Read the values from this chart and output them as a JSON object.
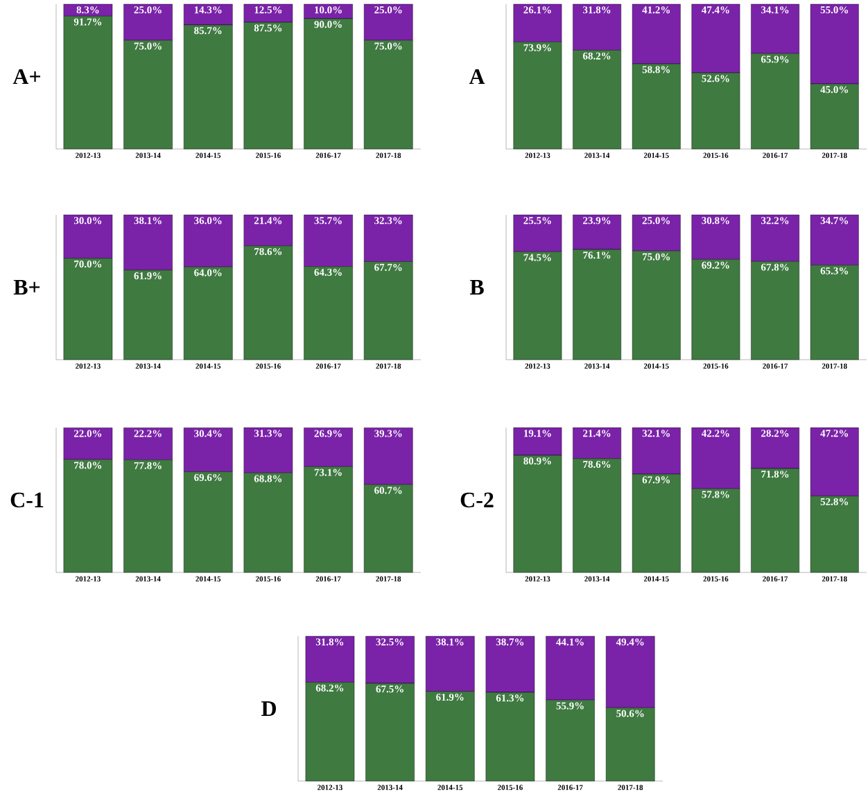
{
  "chart_data": [
    {
      "type": "bar",
      "stacked": true,
      "ylabel": "A+",
      "categories": [
        "2012-13",
        "2013-14",
        "2014-15",
        "2015-16",
        "2016-17",
        "2017-18"
      ],
      "tick_labels": "x",
      "series": [
        {
          "color": "#3f7a41",
          "values": [
            91.7,
            75.0,
            85.7,
            87.5,
            90.0,
            75.0
          ],
          "value_labels": [
            "91.7%",
            "75.0%",
            "85.7%",
            "87.5%",
            "90.0%",
            "75.0%"
          ]
        },
        {
          "color": "#7a22a8",
          "values": [
            8.3,
            25.0,
            14.3,
            12.5,
            10.0,
            25.0
          ],
          "value_labels": [
            "8.3%",
            "25.0%",
            "14.3%",
            "12.5%",
            "10.0%",
            "25.0%"
          ]
        }
      ]
    },
    {
      "type": "bar",
      "stacked": true,
      "ylabel": "A",
      "categories": [
        "2012-13",
        "2013-14",
        "2014-15",
        "2015-16",
        "2016-17",
        "2017-18"
      ],
      "tick_labels": "x",
      "series": [
        {
          "color": "#3f7a41",
          "values": [
            73.9,
            68.2,
            58.8,
            52.6,
            65.9,
            45.0
          ],
          "value_labels": [
            "73.9%",
            "68.2%",
            "58.8%",
            "52.6%",
            "65.9%",
            "45.0%"
          ]
        },
        {
          "color": "#7a22a8",
          "values": [
            26.1,
            31.8,
            41.2,
            47.4,
            34.1,
            55.0
          ],
          "value_labels": [
            "26.1%",
            "31.8%",
            "41.2%",
            "47.4%",
            "34.1%",
            "55.0%"
          ]
        }
      ]
    },
    {
      "type": "bar",
      "stacked": true,
      "ylabel": "B+",
      "categories": [
        "2012-13",
        "2013-14",
        "2014-15",
        "2015-16",
        "2016-17",
        "2017-18"
      ],
      "tick_labels": "x",
      "series": [
        {
          "color": "#3f7a41",
          "values": [
            70.0,
            61.9,
            64.0,
            78.6,
            64.3,
            67.7
          ],
          "value_labels": [
            "70.0%",
            "61.9%",
            "64.0%",
            "78.6%",
            "64.3%",
            "67.7%"
          ]
        },
        {
          "color": "#7a22a8",
          "values": [
            30.0,
            38.1,
            36.0,
            21.4,
            35.7,
            32.3
          ],
          "value_labels": [
            "30.0%",
            "38.1%",
            "36.0%",
            "21.4%",
            "35.7%",
            "32.3%"
          ]
        }
      ]
    },
    {
      "type": "bar",
      "stacked": true,
      "ylabel": "B",
      "categories": [
        "2012-13",
        "2013-14",
        "2014-15",
        "2015-16",
        "2016-17",
        "2017-18"
      ],
      "tick_labels": "x",
      "series": [
        {
          "color": "#3f7a41",
          "values": [
            74.5,
            76.1,
            75.0,
            69.2,
            67.8,
            65.3
          ],
          "value_labels": [
            "74.5%",
            "76.1%",
            "75.0%",
            "69.2%",
            "67.8%",
            "65.3%"
          ]
        },
        {
          "color": "#7a22a8",
          "values": [
            25.5,
            23.9,
            25.0,
            30.8,
            32.2,
            34.7
          ],
          "value_labels": [
            "25.5%",
            "23.9%",
            "25.0%",
            "30.8%",
            "32.2%",
            "34.7%"
          ]
        }
      ]
    },
    {
      "type": "bar",
      "stacked": true,
      "ylabel": "C-1",
      "categories": [
        "2012-13",
        "2013-14",
        "2014-15",
        "2015-16",
        "2016-17",
        "2017-18"
      ],
      "tick_labels": "x",
      "series": [
        {
          "color": "#3f7a41",
          "values": [
            78.0,
            77.8,
            69.6,
            68.8,
            73.1,
            60.7
          ],
          "value_labels": [
            "78.0%",
            "77.8%",
            "69.6%",
            "68.8%",
            "73.1%",
            "60.7%"
          ]
        },
        {
          "color": "#7a22a8",
          "values": [
            22.0,
            22.2,
            30.4,
            31.3,
            26.9,
            39.3
          ],
          "value_labels": [
            "22.0%",
            "22.2%",
            "30.4%",
            "31.3%",
            "26.9%",
            "39.3%"
          ]
        }
      ]
    },
    {
      "type": "bar",
      "stacked": true,
      "ylabel": "C-2",
      "categories": [
        "2012-13",
        "2013-14",
        "2014-15",
        "2015-16",
        "2016-17",
        "2017-18"
      ],
      "tick_labels": "x",
      "series": [
        {
          "color": "#3f7a41",
          "values": [
            80.9,
            78.6,
            67.9,
            57.8,
            71.8,
            52.8
          ],
          "value_labels": [
            "80.9%",
            "78.6%",
            "67.9%",
            "57.8%",
            "71.8%",
            "52.8%"
          ]
        },
        {
          "color": "#7a22a8",
          "values": [
            19.1,
            21.4,
            32.1,
            42.2,
            28.2,
            47.2
          ],
          "value_labels": [
            "19.1%",
            "21.4%",
            "32.1%",
            "42.2%",
            "28.2%",
            "47.2%"
          ]
        }
      ]
    },
    {
      "type": "bar",
      "stacked": true,
      "ylabel": "D",
      "categories": [
        "2012-13",
        "2013-14",
        "2014-15",
        "2015-16",
        "2016-17",
        "2017-18"
      ],
      "tick_labels": "x",
      "series": [
        {
          "color": "#3f7a41",
          "values": [
            68.2,
            67.5,
            61.9,
            61.3,
            55.9,
            50.6
          ],
          "value_labels": [
            "68.2%",
            "67.5%",
            "61.9%",
            "61.3%",
            "55.9%",
            "50.6%"
          ]
        },
        {
          "color": "#7a22a8",
          "values": [
            31.8,
            32.5,
            38.1,
            38.7,
            44.1,
            49.4
          ],
          "value_labels": [
            "31.8%",
            "32.5%",
            "38.1%",
            "38.7%",
            "44.1%",
            "49.4%"
          ]
        }
      ]
    }
  ]
}
